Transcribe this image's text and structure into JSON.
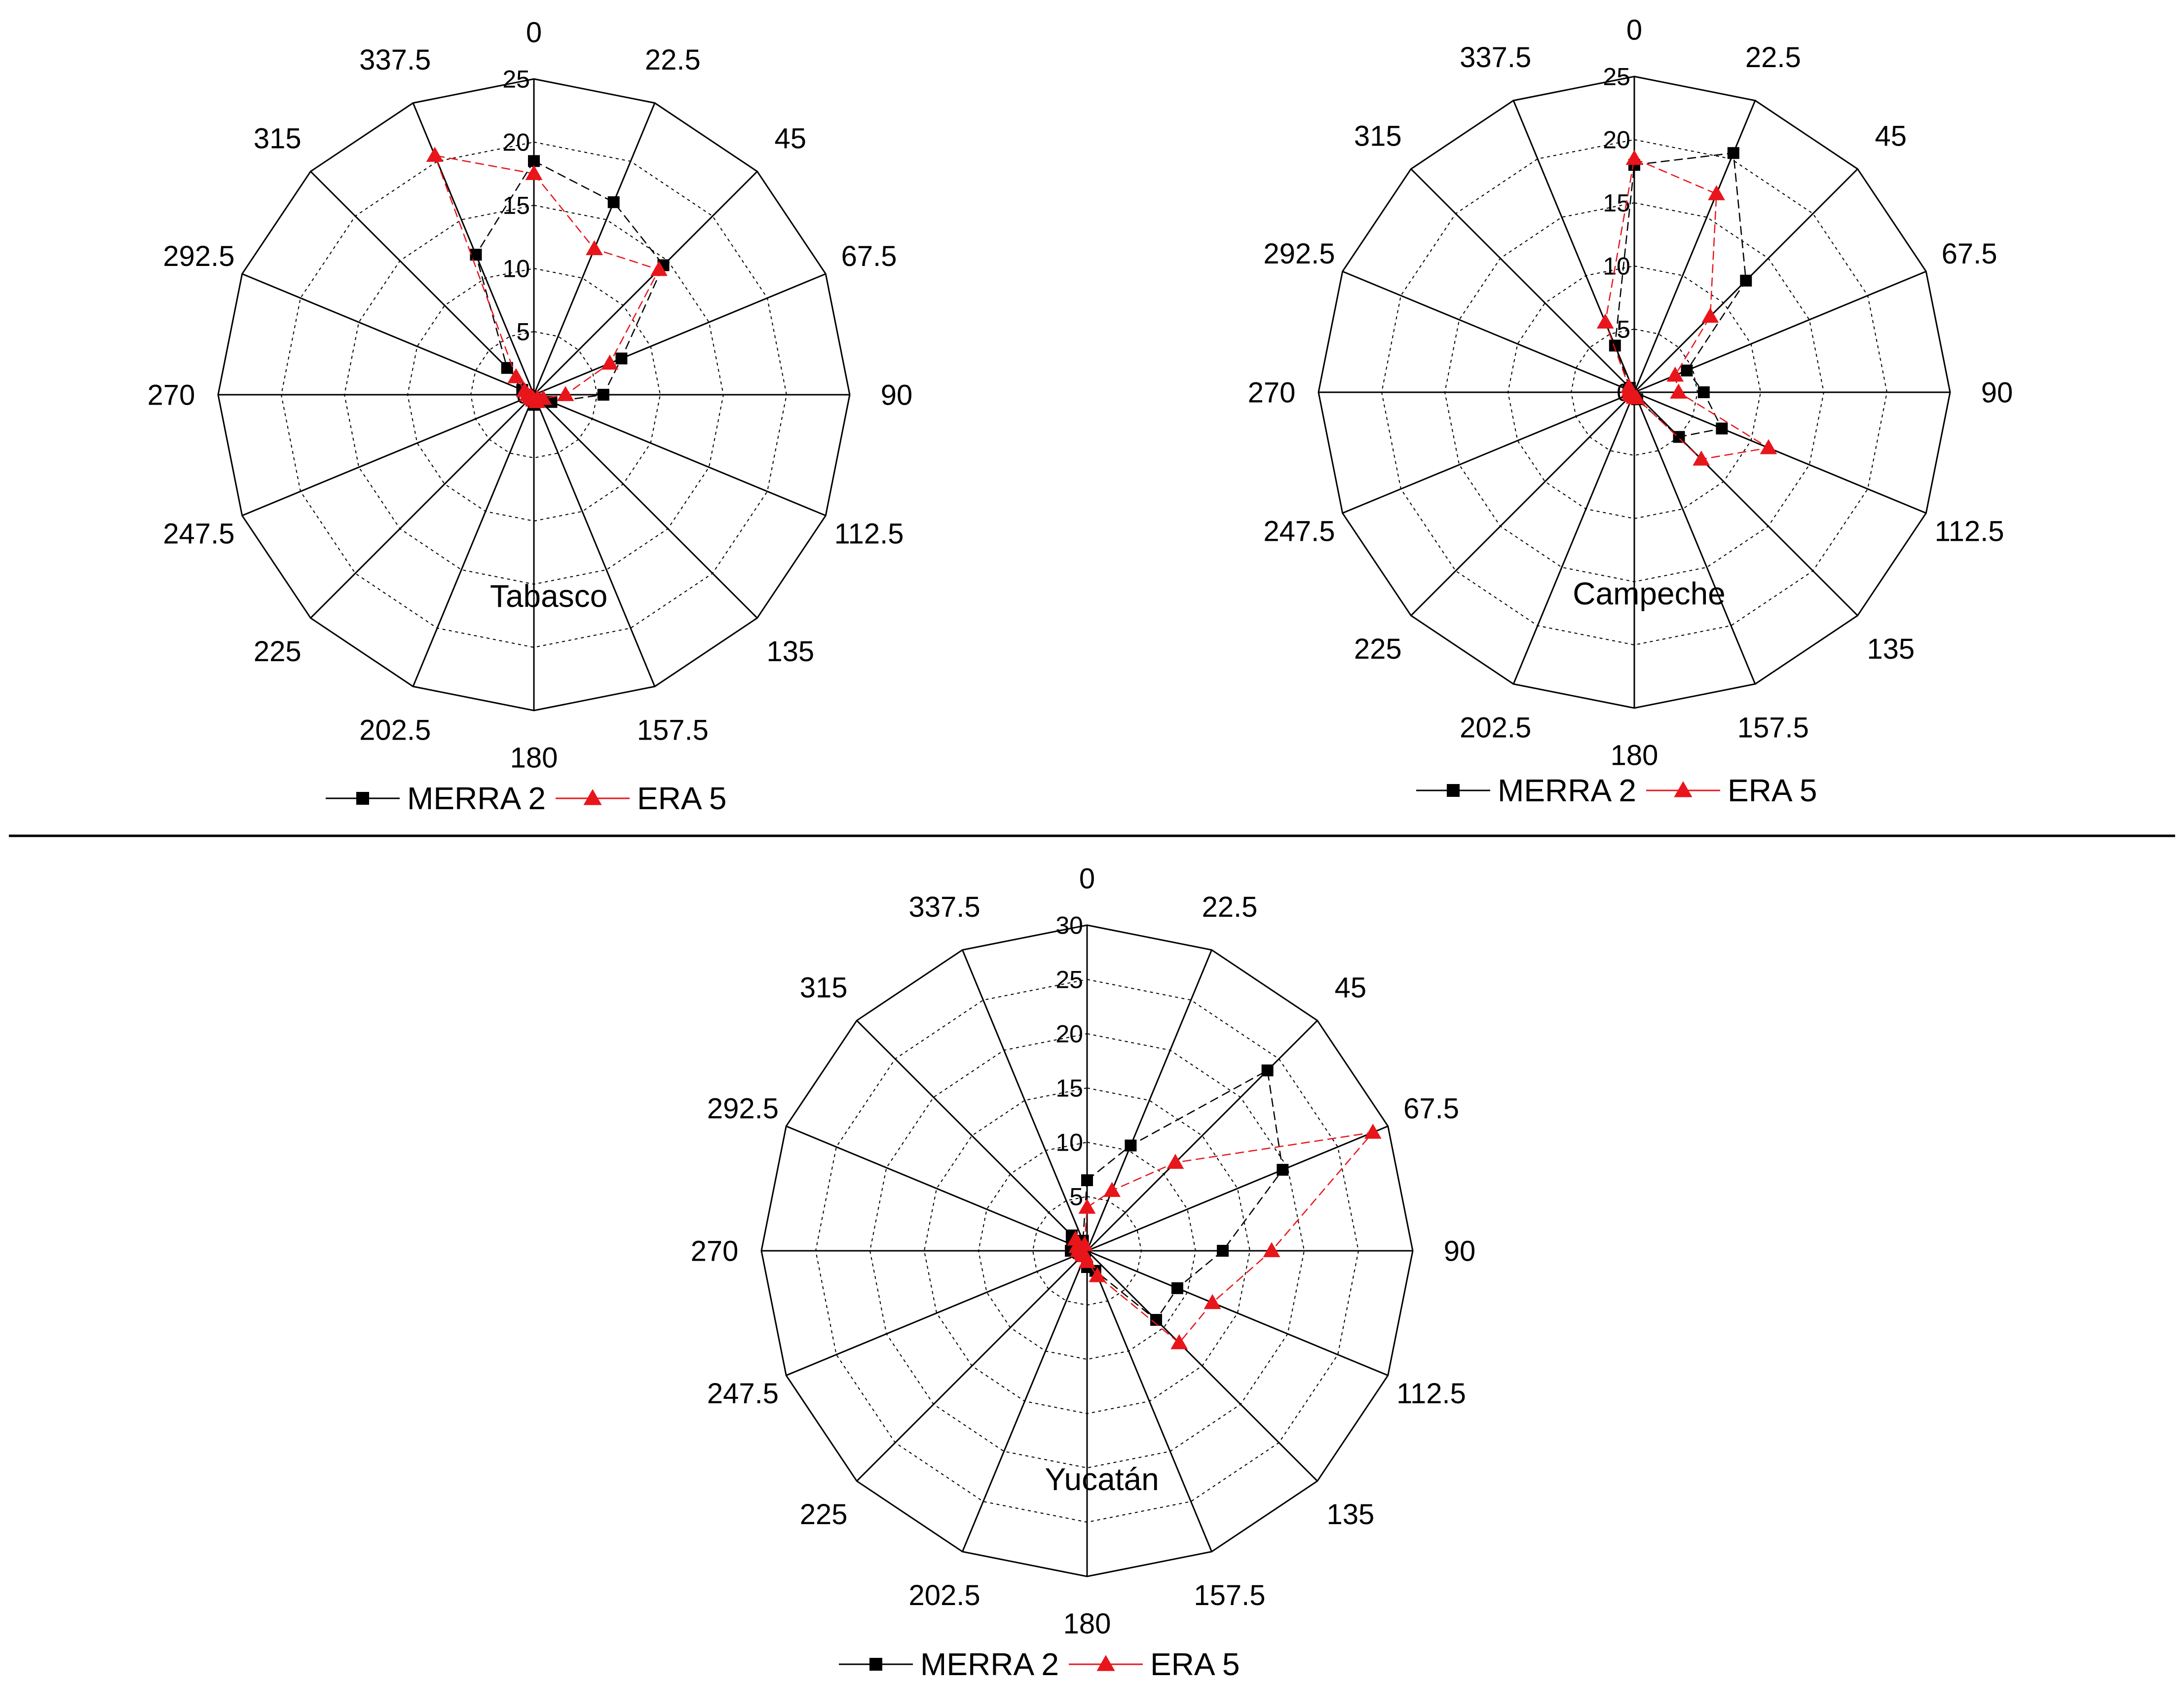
{
  "chart_data": [
    {
      "type": "radar",
      "title": "Tabasco",
      "directions": [
        "0",
        "22.5",
        "45",
        "67.5",
        "90",
        "112.5",
        "135",
        "157.5",
        "180",
        "202.5",
        "225",
        "247.5",
        "270",
        "292.5",
        "315",
        "337.5"
      ],
      "rlim": [
        0,
        25
      ],
      "ticks": [
        "0",
        "5",
        "10",
        "15",
        "20",
        "25"
      ],
      "grid": true,
      "legend_position": "bottom",
      "series": [
        {
          "name": "MERRA 2",
          "marker": "square",
          "color": "#000000",
          "values": [
            18.5,
            16.5,
            14.5,
            7.5,
            5.5,
            1.5,
            0.6,
            0.4,
            0.8,
            0.5,
            0.4,
            0.3,
            0.5,
            1.0,
            3.0,
            12.0
          ]
        },
        {
          "name": "ERA 5",
          "marker": "triangle",
          "color": "#e8151b",
          "values": [
            17.5,
            12.5,
            14.0,
            6.5,
            2.5,
            0.8,
            0.4,
            0.6,
            0.4,
            0.3,
            0.3,
            0.3,
            0.5,
            0.8,
            2.0,
            20.5
          ]
        }
      ]
    },
    {
      "type": "radar",
      "title": "Campeche",
      "directions": [
        "0",
        "22.5",
        "45",
        "67.5",
        "90",
        "112.5",
        "135",
        "157.5",
        "180",
        "202.5",
        "225",
        "247.5",
        "270",
        "292.5",
        "315",
        "337.5"
      ],
      "rlim": [
        0,
        25
      ],
      "ticks": [
        "0",
        "5",
        "10",
        "15",
        "20",
        "25"
      ],
      "grid": true,
      "legend_position": "bottom",
      "series": [
        {
          "name": "MERRA 2",
          "marker": "square",
          "color": "#000000",
          "values": [
            18.0,
            20.5,
            12.5,
            4.5,
            5.5,
            7.5,
            5.0,
            0.6,
            0.4,
            0.3,
            0.3,
            0.3,
            0.4,
            0.5,
            0.5,
            4.0
          ]
        },
        {
          "name": "ERA 5",
          "marker": "triangle",
          "color": "#e8151b",
          "values": [
            18.5,
            17.0,
            8.5,
            3.5,
            3.5,
            11.5,
            7.5,
            0.5,
            0.4,
            0.3,
            0.3,
            0.3,
            0.3,
            0.4,
            0.6,
            6.0
          ]
        }
      ]
    },
    {
      "type": "radar",
      "title": "Yucatán",
      "directions": [
        "0",
        "22.5",
        "45",
        "67.5",
        "90",
        "112.5",
        "135",
        "157.5",
        "180",
        "202.5",
        "225",
        "247.5",
        "270",
        "292.5",
        "315",
        "337.5"
      ],
      "rlim": [
        0,
        30
      ],
      "ticks": [
        "0",
        "5",
        "10",
        "15",
        "20",
        "25",
        "30"
      ],
      "grid": true,
      "legend_position": "bottom",
      "series": [
        {
          "name": "MERRA 2",
          "marker": "square",
          "color": "#000000",
          "values": [
            6.5,
            10.5,
            23.5,
            19.5,
            12.5,
            9.0,
            9.0,
            2.0,
            1.5,
            0.5,
            0.5,
            0.5,
            1.5,
            1.5,
            2.0,
            1.0
          ]
        },
        {
          "name": "ERA 5",
          "marker": "triangle",
          "color": "#e8151b",
          "values": [
            4.0,
            6.0,
            11.5,
            28.5,
            17.0,
            12.5,
            12.0,
            2.5,
            1.0,
            0.5,
            0.5,
            0.5,
            0.8,
            1.0,
            1.5,
            0.6
          ]
        }
      ]
    }
  ]
}
